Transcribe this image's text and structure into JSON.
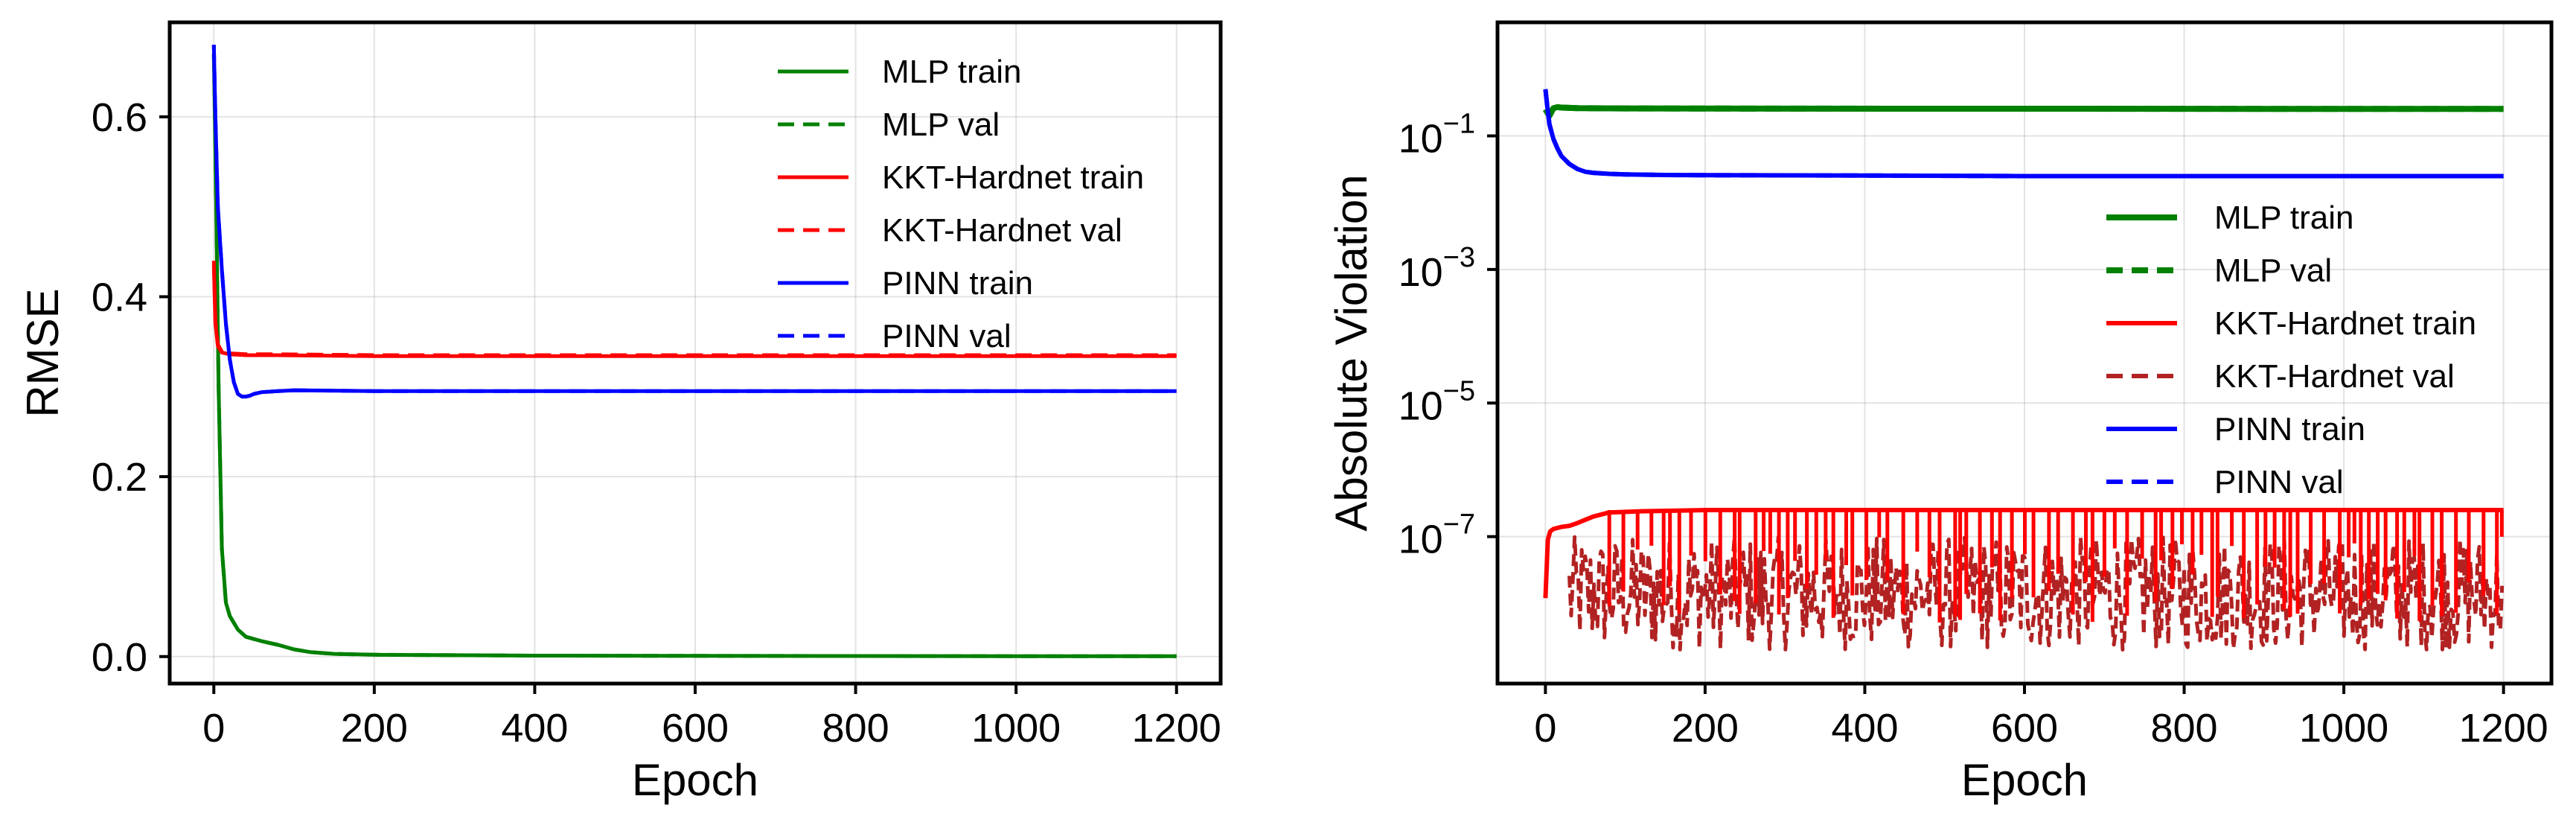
{
  "chart_data": [
    {
      "type": "line",
      "xlabel": "Epoch",
      "ylabel": "RMSE",
      "xlim": [
        -55,
        1255
      ],
      "ylim": [
        -0.03,
        0.705
      ],
      "yscale": "linear",
      "xticks": [
        0,
        200,
        400,
        600,
        800,
        1000,
        1200
      ],
      "xtick_labels": [
        "0",
        "200",
        "400",
        "600",
        "800",
        "1000",
        "1200"
      ],
      "yticks": [
        0.0,
        0.2,
        0.4,
        0.6
      ],
      "ytick_labels": [
        "0.0",
        "0.2",
        "0.4",
        "0.6"
      ],
      "grid": true,
      "legend_position": "top-right",
      "series": [
        {
          "name": "MLP train",
          "color": "#008000",
          "dash": "solid",
          "x": [
            0,
            3,
            6,
            10,
            15,
            20,
            30,
            40,
            60,
            80,
            100,
            120,
            150,
            200,
            300,
            400,
            600,
            800,
            1000,
            1200
          ],
          "y": [
            0.67,
            0.5,
            0.3,
            0.12,
            0.06,
            0.045,
            0.03,
            0.022,
            0.017,
            0.013,
            0.008,
            0.005,
            0.003,
            0.002,
            0.0015,
            0.001,
            0.0008,
            0.0006,
            0.0005,
            0.0005
          ]
        },
        {
          "name": "MLP val",
          "color": "#008000",
          "dash": "dashed",
          "x": [
            0,
            3,
            6,
            10,
            15,
            20,
            30,
            40,
            60,
            80,
            100,
            120,
            150,
            200,
            300,
            400,
            600,
            800,
            1000,
            1200
          ],
          "y": [
            0.67,
            0.5,
            0.3,
            0.12,
            0.06,
            0.045,
            0.03,
            0.022,
            0.017,
            0.013,
            0.008,
            0.005,
            0.003,
            0.002,
            0.0015,
            0.001,
            0.0008,
            0.0006,
            0.0005,
            0.0005
          ]
        },
        {
          "name": "KKT-Hardnet train",
          "color": "#ff0000",
          "dash": "solid",
          "x": [
            0,
            2,
            5,
            10,
            20,
            40,
            80,
            200,
            400,
            600,
            800,
            1000,
            1200
          ],
          "y": [
            0.435,
            0.37,
            0.345,
            0.338,
            0.336,
            0.335,
            0.335,
            0.334,
            0.334,
            0.334,
            0.334,
            0.334,
            0.334
          ]
        },
        {
          "name": "KKT-Hardnet val",
          "color": "#ff0000",
          "dash": "dashed",
          "x": [
            0,
            2,
            5,
            10,
            20,
            40,
            80,
            200,
            400,
            600,
            800,
            1000,
            1200
          ],
          "y": [
            0.44,
            0.372,
            0.347,
            0.339,
            0.337,
            0.336,
            0.336,
            0.335,
            0.335,
            0.335,
            0.335,
            0.335,
            0.335
          ]
        },
        {
          "name": "PINN train",
          "color": "#0000ff",
          "dash": "solid",
          "x": [
            0,
            2,
            5,
            10,
            15,
            20,
            25,
            30,
            35,
            40,
            45,
            50,
            60,
            80,
            100,
            200,
            400,
            600,
            800,
            1000,
            1200
          ],
          "y": [
            0.68,
            0.6,
            0.5,
            0.43,
            0.37,
            0.33,
            0.305,
            0.292,
            0.289,
            0.289,
            0.29,
            0.292,
            0.294,
            0.295,
            0.296,
            0.295,
            0.295,
            0.295,
            0.295,
            0.295,
            0.295
          ]
        },
        {
          "name": "PINN val",
          "color": "#0000ff",
          "dash": "dashed",
          "x": [
            0,
            2,
            5,
            10,
            15,
            20,
            25,
            30,
            35,
            40,
            45,
            50,
            60,
            80,
            100,
            200,
            400,
            600,
            800,
            1000,
            1200
          ],
          "y": [
            0.68,
            0.6,
            0.5,
            0.43,
            0.37,
            0.33,
            0.305,
            0.292,
            0.289,
            0.289,
            0.29,
            0.292,
            0.294,
            0.295,
            0.296,
            0.295,
            0.295,
            0.295,
            0.295,
            0.295,
            0.295
          ]
        }
      ]
    },
    {
      "type": "line",
      "xlabel": "Epoch",
      "ylabel": "Absolute Violation",
      "xlim": [
        -60,
        1260
      ],
      "ylim_log10": [
        -9.2,
        0.7
      ],
      "yscale": "log",
      "xticks": [
        0,
        200,
        400,
        600,
        800,
        1000,
        1200
      ],
      "xtick_labels": [
        "0",
        "200",
        "400",
        "600",
        "800",
        "1000",
        "1200"
      ],
      "yticks_exp": [
        -1,
        -3,
        -5,
        -7
      ],
      "ytick_base": "10",
      "grid": true,
      "legend_position": "center-right",
      "noise_band_log10": {
        "min": -8.7,
        "max": -7.0,
        "start_epoch": 30
      },
      "series": [
        {
          "name": "MLP train",
          "color": "#008000",
          "dash": "solid",
          "width": 8,
          "x": [
            0,
            5,
            10,
            15,
            20,
            40,
            100,
            300,
            600,
            900,
            1200
          ],
          "y": [
            0.25,
            0.2,
            0.26,
            0.27,
            0.265,
            0.26,
            0.258,
            0.256,
            0.255,
            0.254,
            0.253
          ]
        },
        {
          "name": "MLP val",
          "color": "#008000",
          "dash": "dashed",
          "width": 8,
          "x": [
            0,
            5,
            10,
            15,
            20,
            40,
            100,
            300,
            600,
            900,
            1200
          ],
          "y": [
            0.25,
            0.2,
            0.26,
            0.27,
            0.265,
            0.26,
            0.258,
            0.256,
            0.255,
            0.254,
            0.253
          ]
        },
        {
          "name": "KKT-Hardnet train",
          "color": "#ff0000",
          "dash": "solid",
          "width": 6,
          "x": [
            0,
            3,
            6,
            10,
            20,
            30,
            40,
            60,
            80,
            120,
            200,
            400,
            600,
            800,
            1000,
            1200
          ],
          "y": [
            1.2e-08,
            9e-08,
            1.2e-07,
            1.3e-07,
            1.4e-07,
            1.45e-07,
            1.6e-07,
            2e-07,
            2.3e-07,
            2.4e-07,
            2.5e-07,
            2.5e-07,
            2.5e-07,
            2.5e-07,
            2.5e-07,
            2.5e-07
          ]
        },
        {
          "name": "KKT-Hardnet val",
          "color": "#b22222",
          "dash": "dashed",
          "width": 6,
          "x": [],
          "y": []
        },
        {
          "name": "PINN train",
          "color": "#0000ff",
          "dash": "solid",
          "width": 6,
          "x": [
            0,
            2,
            5,
            10,
            15,
            20,
            30,
            40,
            50,
            60,
            80,
            100,
            150,
            200,
            400,
            600,
            800,
            1000,
            1200
          ],
          "y": [
            0.5,
            0.3,
            0.15,
            0.09,
            0.065,
            0.05,
            0.038,
            0.032,
            0.029,
            0.028,
            0.027,
            0.0265,
            0.026,
            0.0258,
            0.0255,
            0.025,
            0.025,
            0.025,
            0.025
          ]
        },
        {
          "name": "PINN val",
          "color": "#0000ff",
          "dash": "dashed",
          "width": 6,
          "x": [
            0,
            2,
            5,
            10,
            15,
            20,
            30,
            40,
            50,
            60,
            80,
            100,
            150,
            200,
            400,
            600,
            800,
            1000,
            1200
          ],
          "y": [
            0.5,
            0.3,
            0.15,
            0.09,
            0.065,
            0.05,
            0.038,
            0.032,
            0.029,
            0.028,
            0.027,
            0.0265,
            0.026,
            0.0258,
            0.0255,
            0.025,
            0.025,
            0.025,
            0.025
          ]
        }
      ]
    }
  ]
}
